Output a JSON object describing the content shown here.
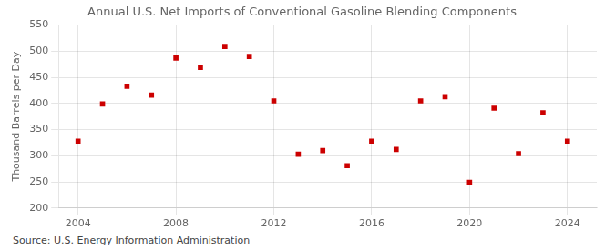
{
  "chart_data": {
    "type": "scatter",
    "title": "Annual U.S. Net Imports of Conventional Gasoline Blending Components",
    "ylabel": "Thousand Barrels per Day",
    "annotations": [
      "Source: U.S. Energy Information Administration"
    ],
    "x": [
      2004,
      2005,
      2006,
      2007,
      2008,
      2009,
      2010,
      2011,
      2012,
      2013,
      2014,
      2015,
      2016,
      2017,
      2018,
      2019,
      2020,
      2021,
      2022,
      2023,
      2024
    ],
    "values": [
      328,
      399,
      433,
      416,
      487,
      469,
      509,
      490,
      405,
      303,
      310,
      281,
      328,
      312,
      405,
      413,
      249,
      391,
      304,
      382,
      328
    ],
    "color": "#cc0000",
    "marker": "square",
    "xlim": [
      2003.2,
      2025.2
    ],
    "ylim": [
      200,
      550
    ],
    "xticks": [
      2004,
      2008,
      2012,
      2016,
      2020,
      2024
    ],
    "yticks": [
      200,
      250,
      300,
      350,
      400,
      450,
      500,
      550
    ],
    "grid": true
  }
}
